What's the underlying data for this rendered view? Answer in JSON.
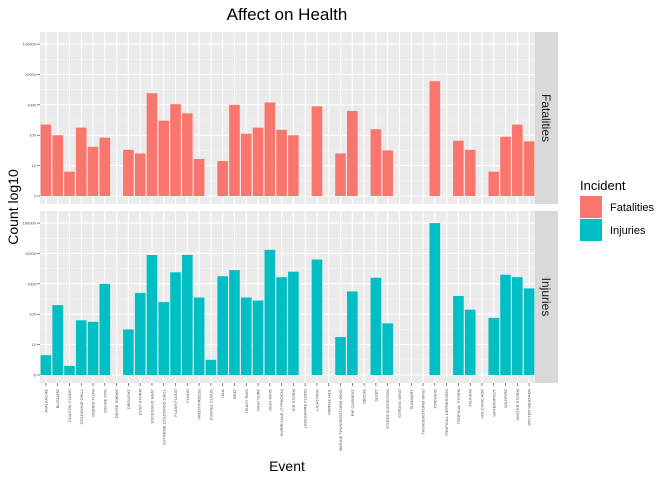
{
  "chart_data": {
    "type": "bar",
    "title": "Affect on Health",
    "xlabel": "Event",
    "ylabel": "Count log10",
    "legend": {
      "title": "Incident",
      "position": "right",
      "entries": [
        {
          "name": "Fatalities",
          "color": "#f8766d"
        },
        {
          "name": "Injuries",
          "color": "#00bfc4"
        }
      ]
    },
    "grid": true,
    "facets": [
      {
        "name": "Fatalities",
        "color": "#f8766d",
        "ylim": [
          0,
          5.2
        ],
        "ytick_values": [
          0,
          1,
          2,
          3,
          4,
          5
        ],
        "ytick_labels": [
          "0",
          "10",
          "100",
          "1000",
          "10000",
          "100000"
        ]
      },
      {
        "name": "Injuries",
        "color": "#00bfc4",
        "ylim": [
          0,
          5.2
        ],
        "ytick_values": [
          0,
          1,
          2,
          3,
          4,
          5
        ],
        "ytick_labels": [
          "0",
          "10",
          "100",
          "1000",
          "10000",
          "100000"
        ]
      }
    ],
    "categories": [
      "AVALANCHE",
      "BLIZZARD",
      "COASTAL FLOOD",
      "COLD/WIND CHILL",
      "DEBRIS FLOW",
      "DENSE FOG",
      "DENSE SMOKE",
      "DROUGHT",
      "DUST STORM",
      "EXCESSIVE HEAT",
      "EXTREME COLD/WIND CHILL",
      "FLASH FLOOD",
      "FLOOD",
      "FROST/FREEZE",
      "FUNNEL CLOUD",
      "HAIL",
      "HEAT",
      "HEAVY RAIN",
      "HIGH SURF",
      "HIGH WIND",
      "HURRICANE (TYPHOON)",
      "ICE STORM",
      "LAKESHORE FLOOD",
      "LIGHTNING",
      "MARINE HAIL",
      "MARINE THUNDERSTORM WIND",
      "RIP CURRENT",
      "SEICHE",
      "SLEET",
      "STORM SURGE/TIDE",
      "STRONG WIND",
      "SUMMARY",
      "THUNDERSTORM WIND",
      "TORNADO",
      "TROPICAL DEPRESSION",
      "TROPICAL STORM",
      "TSUNAMI",
      "VOLCANIC ASH",
      "WATERSPOUT",
      "WILDFIRE",
      "WINTER STORM",
      "WINTER WEATHER"
    ],
    "series": [
      {
        "name": "Fatalities",
        "values": [
          2.35,
          2.0,
          0.8,
          2.25,
          1.62,
          1.92,
          0,
          1.52,
          1.4,
          3.38,
          2.48,
          3.02,
          2.72,
          1.22,
          0,
          1.15,
          3.0,
          2.05,
          2.25,
          3.08,
          2.18,
          2.0,
          0,
          2.95,
          0,
          1.4,
          2.8,
          0,
          2.2,
          1.5,
          0,
          0,
          0,
          3.78,
          0,
          1.82,
          1.52,
          0,
          0.8,
          1.95,
          2.35,
          1.8
        ]
      },
      {
        "name": "Injuries",
        "values": [
          0.65,
          2.3,
          0.3,
          1.8,
          1.75,
          3.0,
          0,
          1.5,
          2.7,
          3.95,
          2.4,
          3.38,
          3.95,
          2.55,
          0.5,
          3.25,
          3.45,
          2.55,
          2.45,
          4.12,
          3.22,
          3.4,
          0,
          3.8,
          0,
          1.25,
          2.75,
          0,
          3.2,
          1.7,
          0,
          0,
          0,
          5.0,
          0,
          2.6,
          2.15,
          0,
          1.88,
          3.3,
          3.22,
          2.85
        ]
      }
    ]
  }
}
